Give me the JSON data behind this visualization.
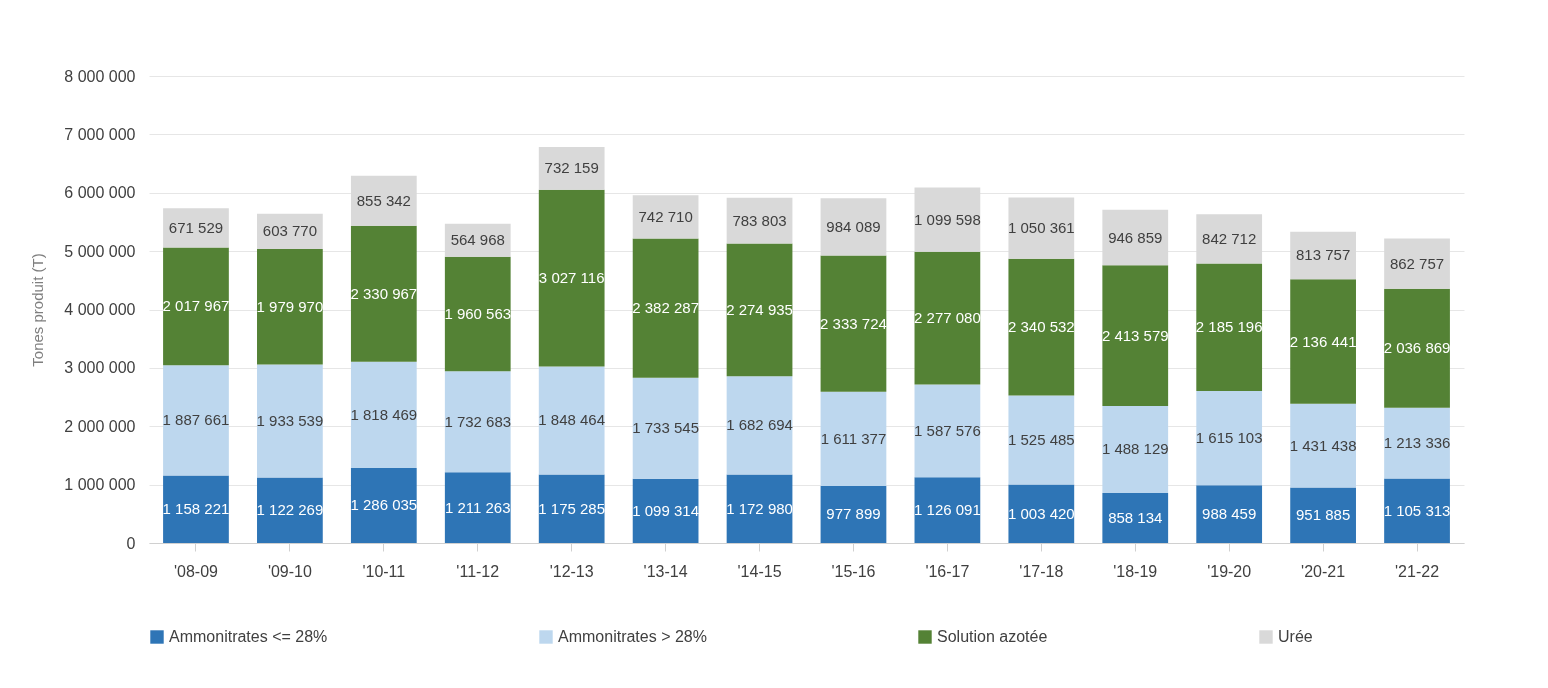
{
  "chart_data": {
    "type": "bar",
    "stacked": true,
    "ylabel": "Tones produit (T)",
    "categories": [
      "'08-09",
      "'09-10",
      "'10-11",
      "'11-12",
      "'12-13",
      "'13-14",
      "'14-15",
      "'15-16",
      "'16-17",
      "'17-18",
      "'18-19",
      "'19-20",
      "'20-21",
      "'21-22"
    ],
    "series": [
      {
        "name": "Ammonitrates <= 28%",
        "color": "#2e75b6",
        "values": [
          1158221,
          1122269,
          1286035,
          1211263,
          1175285,
          1099314,
          1172980,
          977899,
          1126091,
          1003420,
          858134,
          988459,
          951885,
          1105313
        ]
      },
      {
        "name": "Ammonitrates > 28%",
        "color": "#bdd7ee",
        "values": [
          1887661,
          1933539,
          1818469,
          1732683,
          1848464,
          1733545,
          1682694,
          1611377,
          1587576,
          1525485,
          1488129,
          1615103,
          1431438,
          1213336
        ]
      },
      {
        "name": "Solution azotée",
        "color": "#548235",
        "values": [
          2017967,
          1979970,
          2330967,
          1960563,
          3027116,
          2382287,
          2274935,
          2333724,
          2277080,
          2340532,
          2413579,
          2185196,
          2136441,
          2036869
        ]
      },
      {
        "name": "Urée",
        "color": "#d9d9d9",
        "values": [
          671529,
          603770,
          855342,
          564968,
          732159,
          742710,
          783803,
          984089,
          1099598,
          1050361,
          946859,
          842712,
          813757,
          862757
        ]
      }
    ],
    "ylim": [
      0,
      8000000
    ],
    "yticks": [
      0,
      1000000,
      2000000,
      3000000,
      4000000,
      5000000,
      6000000,
      7000000,
      8000000
    ],
    "grid": "y",
    "legend": "bottom",
    "data_labels": true
  }
}
